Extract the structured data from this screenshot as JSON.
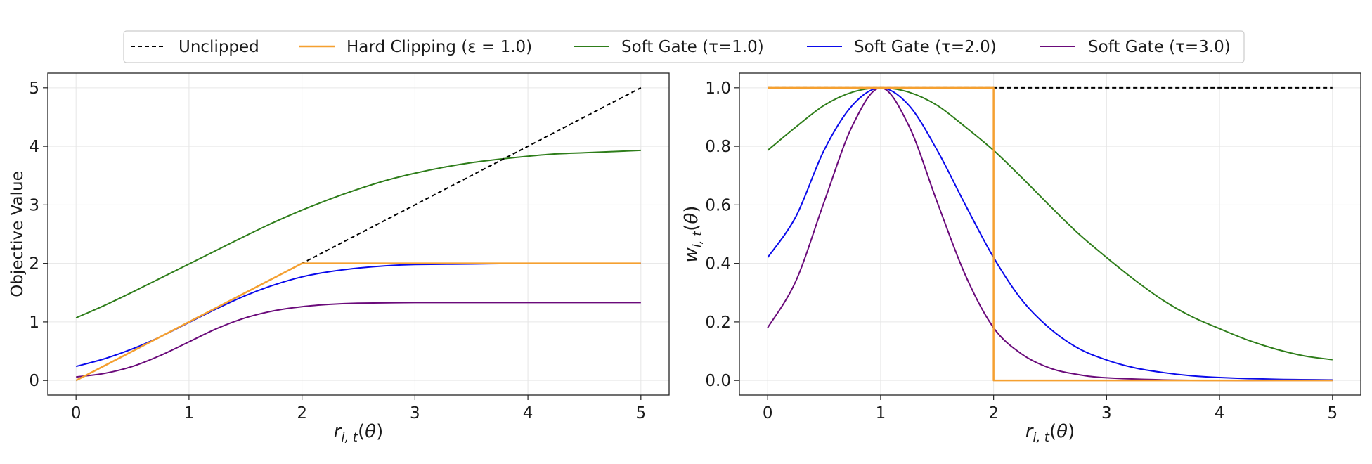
{
  "legend": {
    "placement": "top-center",
    "entries": [
      {
        "label": "Unclipped",
        "color": "#000000",
        "dash": true
      },
      {
        "label": "Hard Clipping (ε = 1.0)",
        "color": "#f5a030",
        "dash": false
      },
      {
        "label": "Soft Gate (τ=1.0)",
        "color": "#2e7d1a",
        "dash": false
      },
      {
        "label": "Soft Gate (τ=2.0)",
        "color": "#0a0aeb",
        "dash": false
      },
      {
        "label": "Soft Gate (τ=3.0)",
        "color": "#6a0a7a",
        "dash": false
      }
    ]
  },
  "chart_data": [
    {
      "type": "line",
      "title": "",
      "xlabel": "r_{i,t}(θ)",
      "ylabel": "Objective Value",
      "xlim": [
        -0.25,
        5.25
      ],
      "ylim": [
        -0.25,
        5.25
      ],
      "xticks": [
        0,
        1,
        2,
        3,
        4,
        5
      ],
      "yticks": [
        0,
        1,
        2,
        3,
        4,
        5
      ],
      "grid": true,
      "series": [
        {
          "name": "Unclipped",
          "color": "#000000",
          "dash": true,
          "x": [
            0,
            1,
            2,
            3,
            4,
            5
          ],
          "y": [
            0,
            1,
            2,
            3,
            4,
            5
          ]
        },
        {
          "name": "Hard Clipping (ε = 1.0)",
          "color": "#f5a030",
          "dash": false,
          "x": [
            0,
            1,
            2,
            2.5,
            3,
            3.5,
            4,
            4.5,
            5
          ],
          "y": [
            0,
            1,
            2,
            2,
            2,
            2,
            2,
            2,
            2
          ]
        },
        {
          "name": "Soft Gate (τ=1.0)",
          "color": "#2e7d1a",
          "dash": false,
          "x": [
            0,
            0.25,
            0.5,
            0.75,
            1,
            1.25,
            1.5,
            1.75,
            2,
            2.25,
            2.5,
            2.75,
            3,
            3.25,
            3.5,
            3.75,
            4,
            4.25,
            4.5,
            4.75,
            5
          ],
          "y": [
            1.07,
            1.28,
            1.51,
            1.75,
            1.99,
            2.23,
            2.47,
            2.7,
            2.91,
            3.1,
            3.27,
            3.42,
            3.54,
            3.64,
            3.72,
            3.78,
            3.83,
            3.87,
            3.89,
            3.91,
            3.93
          ]
        },
        {
          "name": "Soft Gate (τ=2.0)",
          "color": "#0a0aeb",
          "dash": false,
          "x": [
            0,
            0.25,
            0.5,
            0.75,
            1,
            1.25,
            1.5,
            1.75,
            2,
            2.25,
            2.5,
            2.75,
            3,
            3.5,
            4,
            4.5,
            5
          ],
          "y": [
            0.24,
            0.37,
            0.54,
            0.75,
            0.99,
            1.23,
            1.45,
            1.63,
            1.77,
            1.86,
            1.92,
            1.96,
            1.98,
            1.99,
            2.0,
            2.0,
            2.0
          ]
        },
        {
          "name": "Soft Gate (τ=3.0)",
          "color": "#6a0a7a",
          "dash": false,
          "x": [
            0,
            0.25,
            0.5,
            0.75,
            1,
            1.25,
            1.5,
            1.75,
            2,
            2.25,
            2.5,
            3,
            3.5,
            4,
            4.5,
            5
          ],
          "y": [
            0.06,
            0.12,
            0.24,
            0.43,
            0.66,
            0.89,
            1.07,
            1.19,
            1.26,
            1.3,
            1.32,
            1.33,
            1.33,
            1.33,
            1.33,
            1.33
          ]
        }
      ]
    },
    {
      "type": "line",
      "title": "",
      "xlabel": "r_{i,t}(θ)",
      "ylabel": "w_{i,t}(θ)",
      "xlim": [
        -0.25,
        5.25
      ],
      "ylim": [
        -0.05,
        1.05
      ],
      "xticks": [
        0,
        1,
        2,
        3,
        4,
        5
      ],
      "yticks": [
        0.0,
        0.2,
        0.4,
        0.6,
        0.8,
        1.0
      ],
      "grid": true,
      "series": [
        {
          "name": "Unclipped",
          "color": "#000000",
          "dash": true,
          "x": [
            0,
            5
          ],
          "y": [
            1.0,
            1.0
          ]
        },
        {
          "name": "Hard Clipping (ε = 1.0)",
          "color": "#f5a030",
          "dash": false,
          "x": [
            0,
            2,
            2,
            5
          ],
          "y": [
            1.0,
            1.0,
            0.0,
            0.0
          ]
        },
        {
          "name": "Soft Gate (τ=1.0)",
          "color": "#2e7d1a",
          "dash": false,
          "x": [
            0,
            0.25,
            0.5,
            0.75,
            1,
            1.25,
            1.5,
            1.75,
            2,
            2.25,
            2.5,
            2.75,
            3,
            3.25,
            3.5,
            3.75,
            4,
            4.25,
            4.5,
            4.75,
            5
          ],
          "y": [
            0.786,
            0.866,
            0.94,
            0.985,
            1.0,
            0.985,
            0.94,
            0.866,
            0.786,
            0.693,
            0.596,
            0.502,
            0.42,
            0.343,
            0.274,
            0.219,
            0.177,
            0.138,
            0.107,
            0.084,
            0.071
          ]
        },
        {
          "name": "Soft Gate (τ=2.0)",
          "color": "#0a0aeb",
          "dash": false,
          "x": [
            0,
            0.25,
            0.5,
            0.75,
            1,
            1.25,
            1.5,
            1.75,
            2,
            2.25,
            2.5,
            2.75,
            3,
            3.25,
            3.5,
            3.75,
            4,
            4.5,
            5
          ],
          "y": [
            0.42,
            0.56,
            0.787,
            0.94,
            1.0,
            0.94,
            0.787,
            0.6,
            0.42,
            0.275,
            0.177,
            0.11,
            0.07,
            0.043,
            0.027,
            0.016,
            0.01,
            0.004,
            0.002
          ]
        },
        {
          "name": "Soft Gate (τ=3.0)",
          "color": "#6a0a7a",
          "dash": false,
          "x": [
            0,
            0.25,
            0.5,
            0.75,
            1,
            1.25,
            1.5,
            1.75,
            2,
            2.25,
            2.5,
            2.75,
            3,
            3.5,
            4,
            4.5,
            5
          ],
          "y": [
            0.18,
            0.34,
            0.61,
            0.87,
            1.0,
            0.87,
            0.61,
            0.36,
            0.18,
            0.09,
            0.042,
            0.02,
            0.009,
            0.002,
            0.0,
            0.0,
            0.0
          ]
        }
      ]
    }
  ]
}
